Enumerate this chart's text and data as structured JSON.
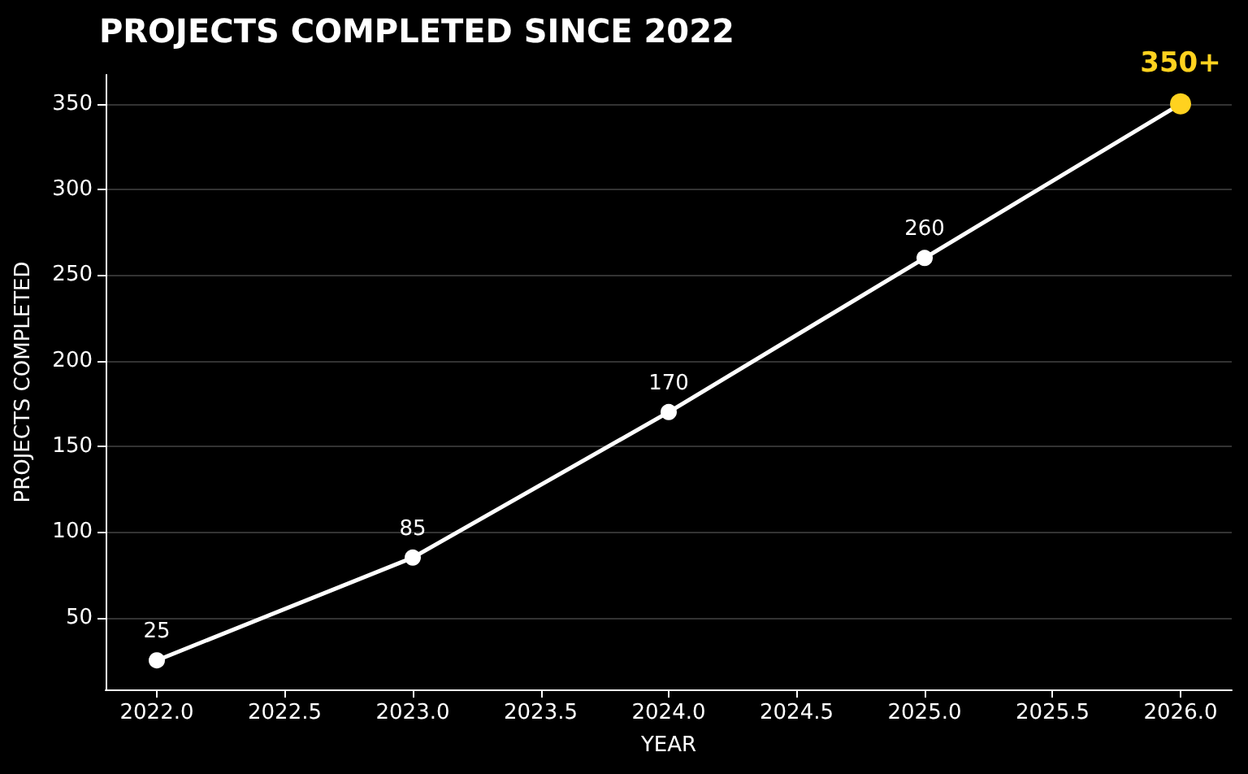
{
  "chart_data": {
    "type": "line",
    "title": "PROJECTS COMPLETED SINCE 2022",
    "xlabel": "YEAR",
    "ylabel": "PROJECTS COMPLETED",
    "x": [
      2022,
      2023,
      2024,
      2025,
      2026
    ],
    "series": [
      {
        "color": "#ffffff",
        "colors": [
          "#ffffff",
          "#ffffff",
          "#ffffff",
          "#ffffff",
          "#ffd21f"
        ],
        "values": [
          25,
          85,
          170,
          260,
          350
        ],
        "value_labels": [
          "25",
          "85",
          "170",
          "260",
          "350+"
        ]
      }
    ],
    "xlim": [
      2021.8,
      2026.2
    ],
    "xticks": [
      {
        "value": 2022,
        "label": "2022.0"
      },
      {
        "value": 2022.5,
        "label": "2022.5"
      },
      {
        "value": 2023,
        "label": "2023.0"
      },
      {
        "value": 2023.5,
        "label": "2023.5"
      },
      {
        "value": 2024,
        "label": "2024.0"
      },
      {
        "value": 2024.5,
        "label": "2024.5"
      },
      {
        "value": 2025,
        "label": "2025.0"
      },
      {
        "value": 2025.5,
        "label": "2025.5"
      },
      {
        "value": 2026,
        "label": "2026.0"
      }
    ],
    "ylim": [
      8,
      367
    ],
    "yticks": [
      50,
      100,
      150,
      200,
      250,
      300,
      350
    ],
    "grid": "y",
    "marker": "circle",
    "line_style": "solid"
  }
}
